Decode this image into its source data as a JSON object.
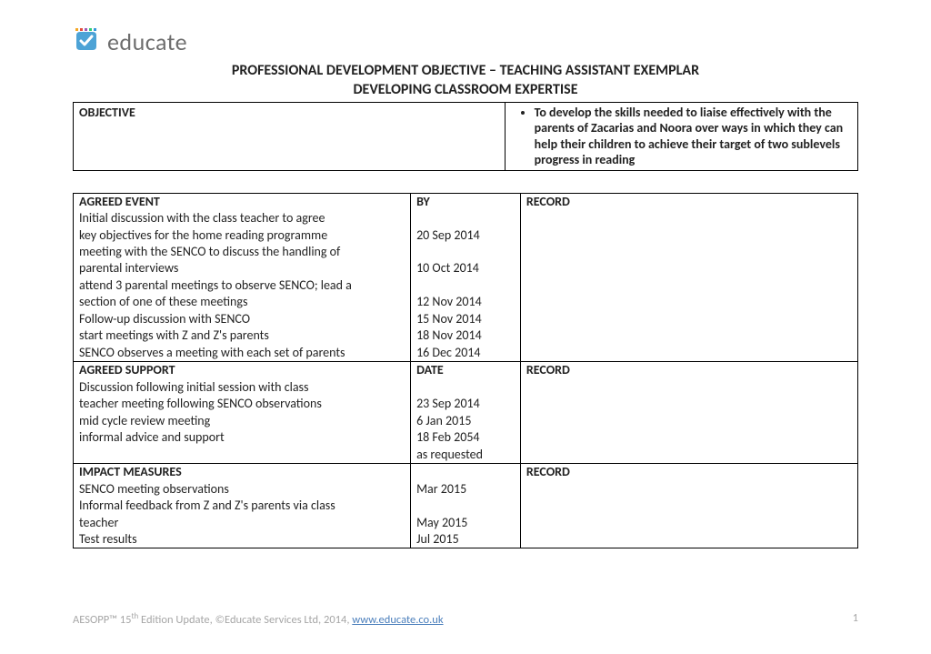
{
  "logo": {
    "text": "educate"
  },
  "title": {
    "line1": "PROFESSIONAL DEVELOPMENT OBJECTIVE – TEACHING ASSISTANT EXEMPLAR",
    "line2": "DEVELOPING CLASSROOM EXPERTISE"
  },
  "objective": {
    "label": "OBJECTIVE",
    "bullet": "To develop the skills needed to liaise effectively with the parents of Zacarias and Noora over ways in which they can help their children to achieve their target of two sublevels progress in reading"
  },
  "sections": {
    "agreed_event": {
      "header": {
        "left": "AGREED EVENT",
        "mid": "BY",
        "right": "RECORD"
      },
      "rows": [
        {
          "left": "Initial discussion with the class teacher to agree key objectives for the home reading programme",
          "mid": "20 Sep 2014"
        },
        {
          "left": "meeting with the SENCO to discuss the handling of parental interviews",
          "mid": "10 Oct 2014"
        },
        {
          "left": "attend 3 parental meetings to observe SENCO; lead a section of one of these meetings",
          "mid": "12 Nov 2014"
        },
        {
          "left": "Follow-up discussion with SENCO",
          "mid": "15 Nov 2014"
        },
        {
          "left": "start meetings with Z and Z's parents",
          "mid": "18 Nov 2014"
        },
        {
          "left": "SENCO observes a meeting with each set of parents",
          "mid": "16 Dec 2014"
        }
      ]
    },
    "agreed_support": {
      "header": {
        "left": "AGREED SUPPORT",
        "mid": "DATE",
        "right": "RECORD"
      },
      "rows": [
        {
          "left": "Discussion following initial session with class teacher meeting following SENCO observations",
          "mid": "23 Sep 2014"
        },
        {
          "left": "mid cycle review meeting",
          "mid": "6 Jan 2015"
        },
        {
          "left": "informal advice and support",
          "mid": "18 Feb 2054"
        },
        {
          "left": "",
          "mid": "as requested"
        }
      ]
    },
    "impact_measures": {
      "header": {
        "left": "IMPACT MEASURES",
        "mid": "",
        "right": "RECORD"
      },
      "rows": [
        {
          "left": "SENCO meeting observations",
          "mid": "Mar 2015"
        },
        {
          "left": "Informal feedback from Z and Z's parents via class teacher",
          "mid": "May 2015"
        },
        {
          "left": "Test results",
          "mid": "Jul 2015"
        }
      ]
    }
  },
  "footer": {
    "prefix": "AESOPP™ 15",
    "sup": "th",
    "mid": " Edition Update, ©Educate Services Ltd, 2014, ",
    "link": "www.educate.co.uk",
    "page": "1"
  }
}
